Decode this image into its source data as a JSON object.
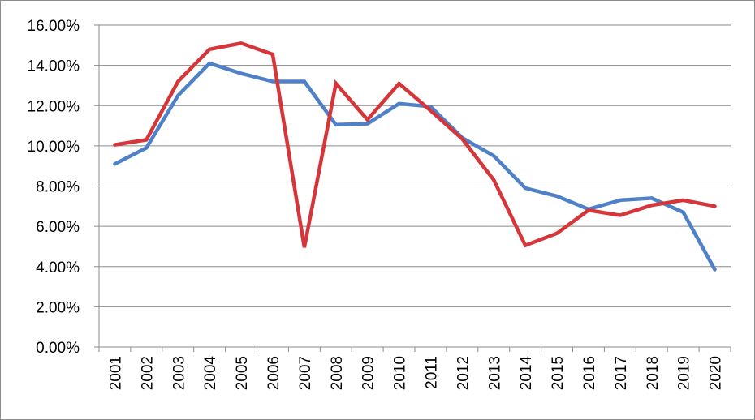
{
  "chart_data": {
    "type": "line",
    "title": "",
    "xlabel": "",
    "ylabel": "",
    "ylim": [
      0,
      16
    ],
    "y_tick_values": [
      0,
      2,
      4,
      6,
      8,
      10,
      12,
      14,
      16
    ],
    "y_tick_labels": [
      "0.00%",
      "2.00%",
      "4.00%",
      "6.00%",
      "8.00%",
      "10.00%",
      "12.00%",
      "14.00%",
      "16.00%"
    ],
    "grid": "horizontal",
    "legend": "none",
    "x": [
      "2001",
      "2002",
      "2003",
      "2004",
      "2005",
      "2006",
      "2007",
      "2008",
      "2009",
      "2010",
      "2011",
      "2012",
      "2013",
      "2014",
      "2015",
      "2016",
      "2017",
      "2018",
      "2019",
      "2020"
    ],
    "series": [
      {
        "color": "#4f81c9",
        "values": [
          9.1,
          9.9,
          12.5,
          14.1,
          13.6,
          13.2,
          13.2,
          11.05,
          11.1,
          12.1,
          11.95,
          10.4,
          9.5,
          7.9,
          7.5,
          6.85,
          7.3,
          7.4,
          6.7,
          3.85
        ]
      },
      {
        "color": "#d4363a",
        "values": [
          10.05,
          10.3,
          13.2,
          14.8,
          15.1,
          14.55,
          4.95,
          13.1,
          11.3,
          13.1,
          11.75,
          10.35,
          8.3,
          5.05,
          5.65,
          6.8,
          6.55,
          7.05,
          7.3,
          7.0
        ]
      }
    ]
  }
}
